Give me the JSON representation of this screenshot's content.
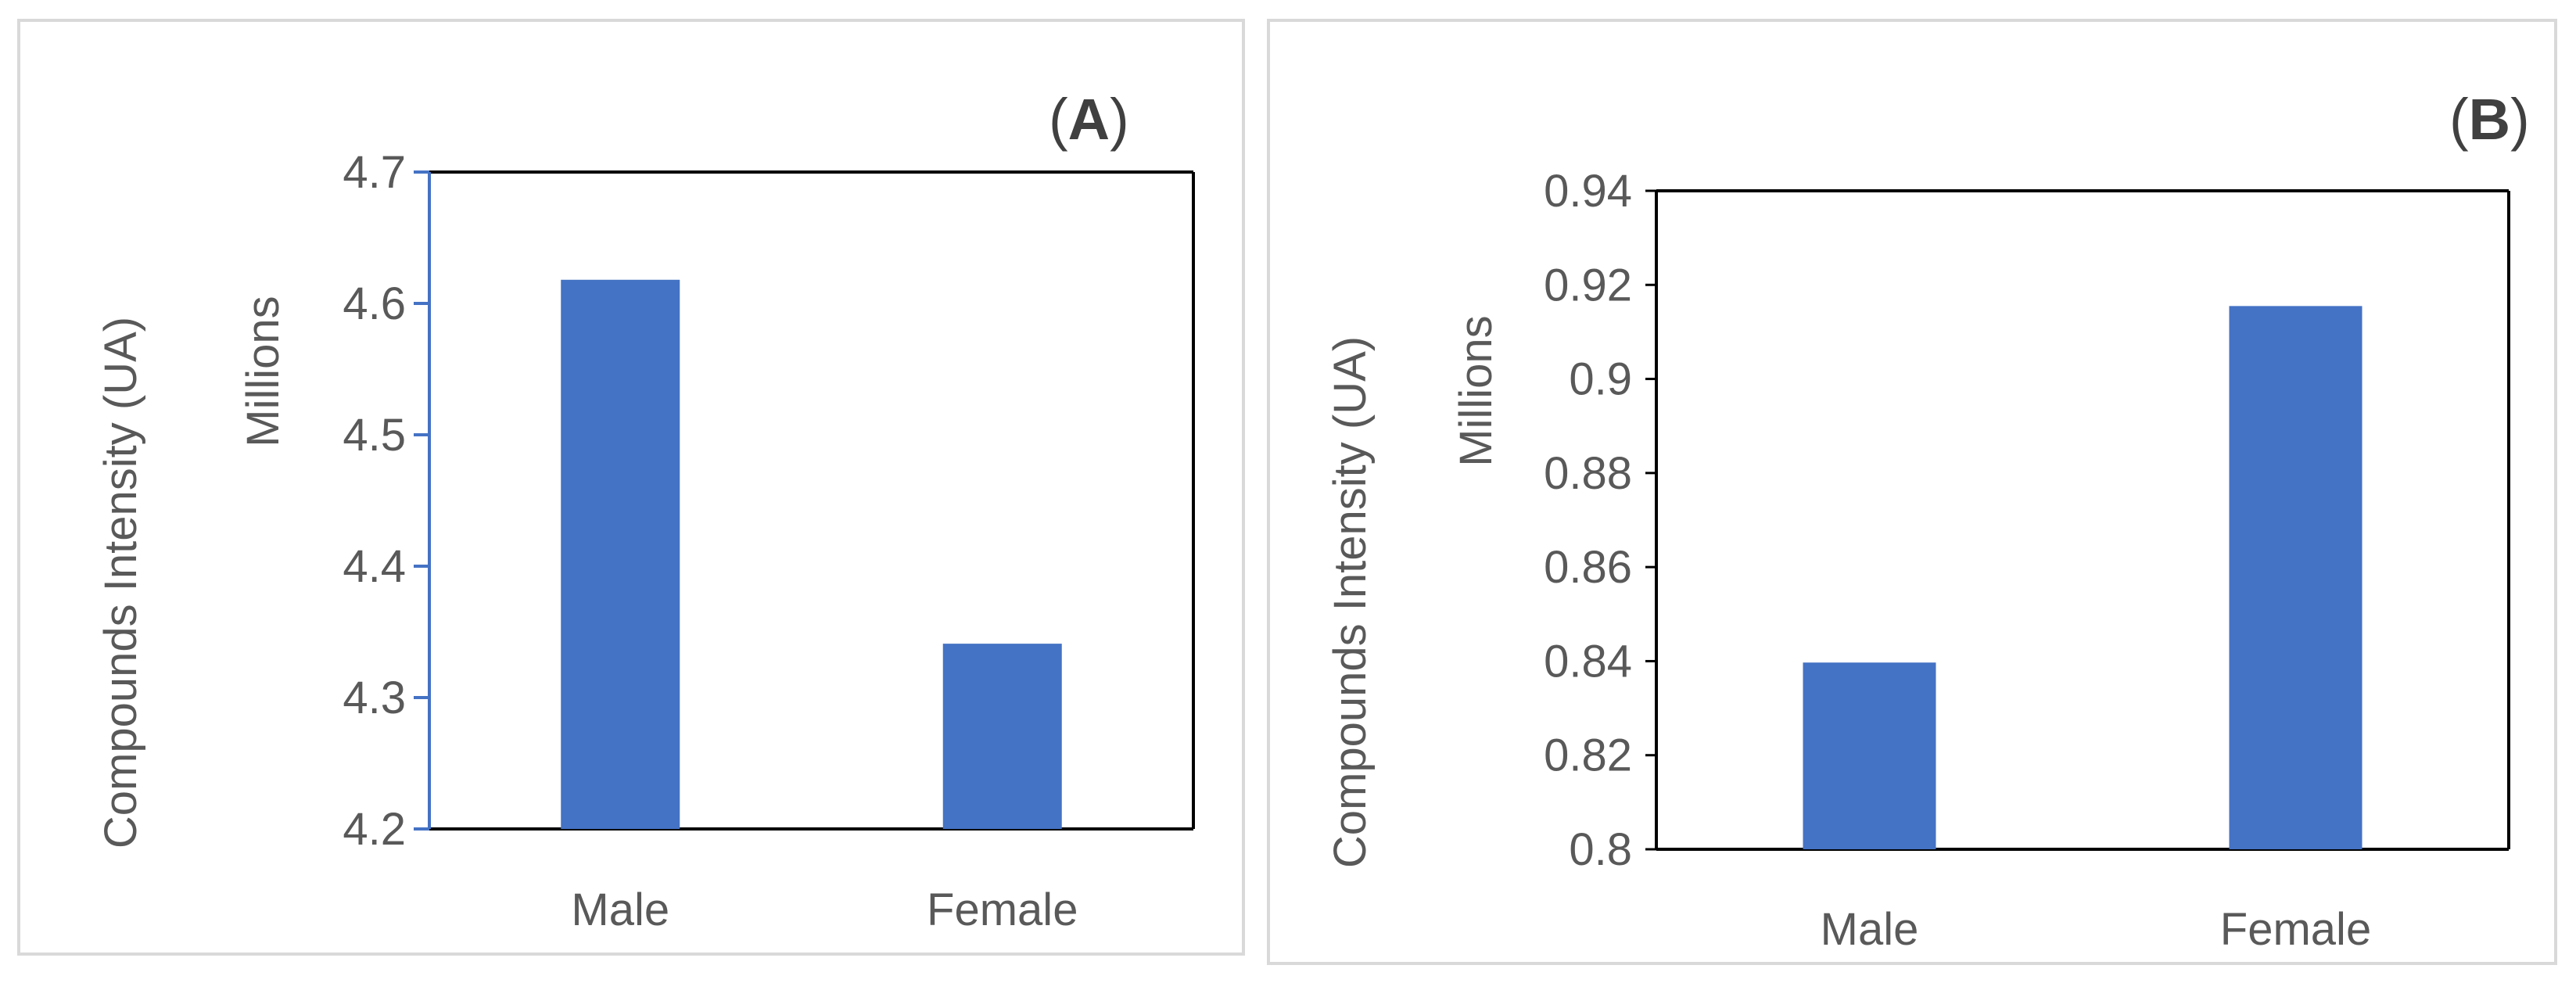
{
  "colors": {
    "bar": "#4472C4",
    "axis_a": "#4472C4",
    "axis_b": "#000000",
    "text": "#595959"
  },
  "chart_data": [
    {
      "type": "bar",
      "panel_label": {
        "open": "(",
        "letter": "A",
        "close": ")"
      },
      "categories": [
        "Male",
        "Female"
      ],
      "values": [
        4.618,
        4.341
      ],
      "ylabel": "Compounds Intensity (UA)",
      "yunit_label": "Millions",
      "ylim": [
        4.2,
        4.7
      ],
      "yticks": [
        4.2,
        4.3,
        4.4,
        4.5,
        4.6,
        4.7
      ],
      "ytick_labels": [
        "4.2",
        "4.3",
        "4.4",
        "4.5",
        "4.6",
        "4.7"
      ],
      "grid": false,
      "legend": "none"
    },
    {
      "type": "bar",
      "panel_label": {
        "open": "(",
        "letter": "B",
        "close": ")"
      },
      "categories": [
        "Male",
        "Female"
      ],
      "values": [
        0.8397,
        0.9155
      ],
      "ylabel": "Compounds Intensity (UA)",
      "yunit_label": "Millions",
      "ylim": [
        0.8,
        0.94
      ],
      "yticks": [
        0.8,
        0.82,
        0.84,
        0.86,
        0.88,
        0.9,
        0.92,
        0.94
      ],
      "ytick_labels": [
        "0.8",
        "0.82",
        "0.84",
        "0.86",
        "0.88",
        "0.9",
        "0.92",
        "0.94"
      ],
      "grid": false,
      "legend": "none"
    }
  ]
}
